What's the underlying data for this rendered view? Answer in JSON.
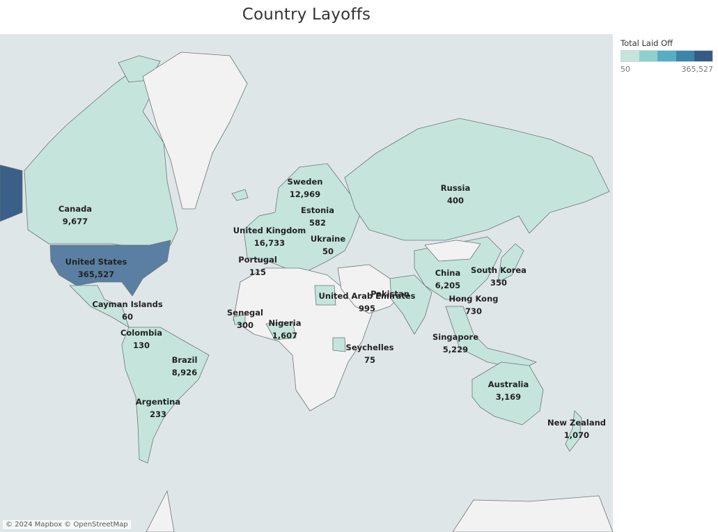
{
  "title": "Country Layoffs",
  "legend": {
    "title": "Total Laid Off",
    "min": "50",
    "max": "365,527",
    "colors": [
      "#c5e5dc",
      "#8fcfcf",
      "#56aec4",
      "#3b84aa",
      "#365a86"
    ]
  },
  "map": {
    "credit": "© 2024 Mapbox © OpenStreetMap",
    "ocean_color": "#dfe6e8",
    "no_data_color": "#f2f2f2",
    "low_color": "#c5e5dc",
    "high_color": "#5b7fa3"
  },
  "countries": [
    {
      "name": "Canada",
      "value": "9,677"
    },
    {
      "name": "United States",
      "value": "365,527"
    },
    {
      "name": "Cayman Islands",
      "value": "60"
    },
    {
      "name": "Colombia",
      "value": "130"
    },
    {
      "name": "Brazil",
      "value": "8,926"
    },
    {
      "name": "Argentina",
      "value": "233"
    },
    {
      "name": "Portugal",
      "value": "115"
    },
    {
      "name": "United Kingdom",
      "value": "16,733"
    },
    {
      "name": "Sweden",
      "value": "12,969"
    },
    {
      "name": "Estonia",
      "value": "582"
    },
    {
      "name": "Ukraine",
      "value": "50"
    },
    {
      "name": "Senegal",
      "value": "300"
    },
    {
      "name": "Nigeria",
      "value": "1,607"
    },
    {
      "name": "Seychelles",
      "value": "75"
    },
    {
      "name": "United Arab Emirates",
      "value": "995"
    },
    {
      "name": "Pakistan",
      "value": ""
    },
    {
      "name": "Russia",
      "value": "400"
    },
    {
      "name": "China",
      "value": "6,205"
    },
    {
      "name": "South Korea",
      "value": "350"
    },
    {
      "name": "Hong Kong",
      "value": "730"
    },
    {
      "name": "Singapore",
      "value": "5,229"
    },
    {
      "name": "Australia",
      "value": "3,169"
    },
    {
      "name": "New Zealand",
      "value": "1,070"
    }
  ]
}
